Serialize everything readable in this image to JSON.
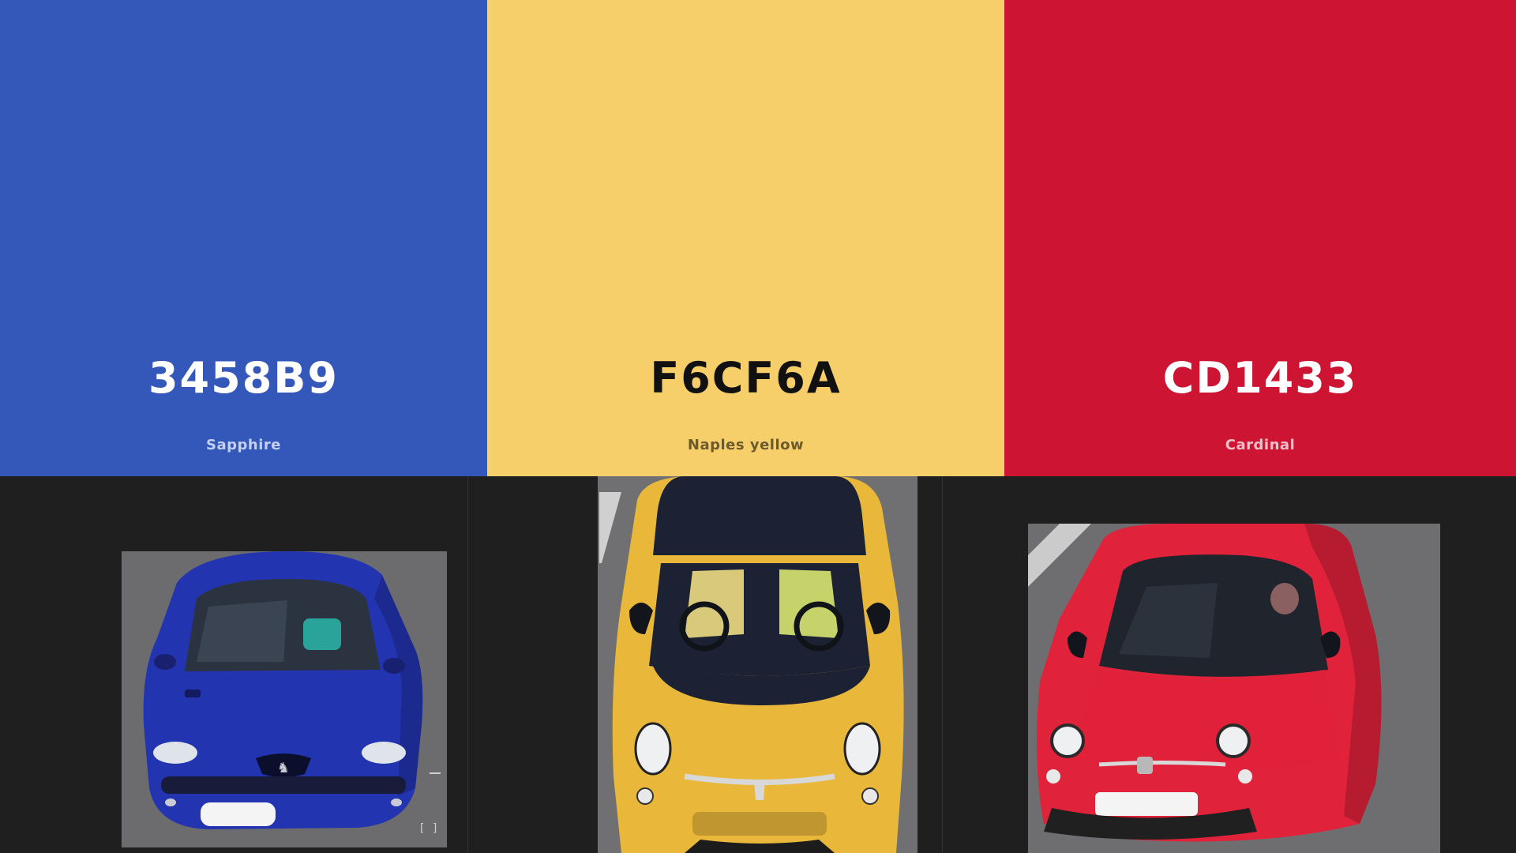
{
  "swatches": [
    {
      "hex": "3458B9",
      "name": "Sapphire",
      "bg": "#3458B9",
      "hex_color": "#ffffff",
      "name_color": "#c4d0ef"
    },
    {
      "hex": "F6CF6A",
      "name": "Naples yellow",
      "bg": "#F6CF6A",
      "hex_color": "#111111",
      "name_color": "#6b5a2e"
    },
    {
      "hex": "CD1433",
      "name": "Cardinal",
      "bg": "#CD1433",
      "hex_color": "#ffffff",
      "name_color": "#f1c0c8"
    }
  ],
  "photos": [
    {
      "subject": "blue-car",
      "body_color": "#2334b0",
      "road_color": "#6c6c6e"
    },
    {
      "subject": "yellow-car",
      "body_color": "#e9b83a",
      "road_color": "#707072"
    },
    {
      "subject": "red-car",
      "body_color": "#e0223a",
      "road_color": "#6e6e70"
    }
  ]
}
